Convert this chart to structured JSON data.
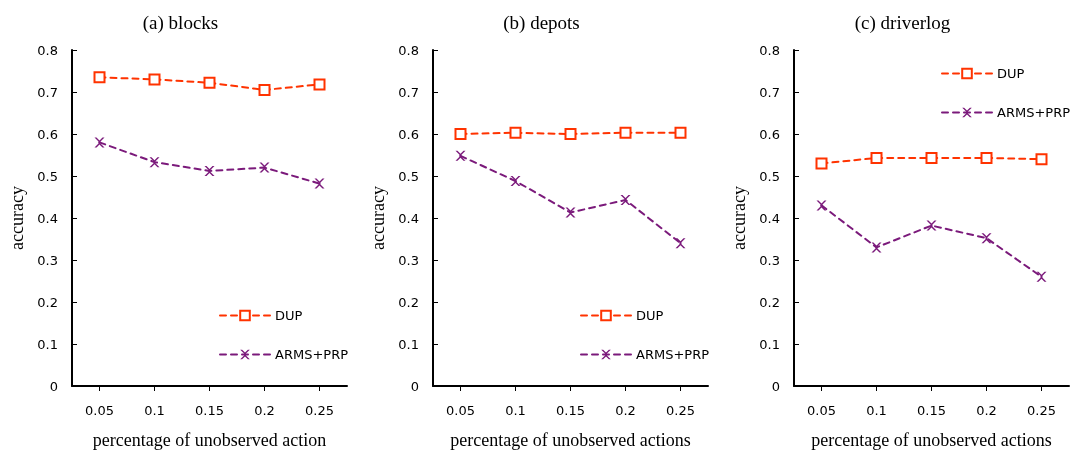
{
  "chart_data": [
    {
      "type": "line",
      "title": "(a) blocks",
      "xlabel": "percentage of unobserved action",
      "ylabel": "accuracy",
      "categories": [
        "0.05",
        "0.1",
        "0.15",
        "0.2",
        "0.25"
      ],
      "series": [
        {
          "name": "DUP",
          "color": "#ff3300",
          "values": [
            0.735,
            0.73,
            0.722,
            0.705,
            0.718
          ],
          "marker": "square",
          "line_style": "dashed"
        },
        {
          "name": "ARMS+PRP",
          "color": "#7b1a7b",
          "values": [
            0.58,
            0.533,
            0.512,
            0.52,
            0.482
          ],
          "marker": "cross",
          "line_style": "dashed"
        }
      ],
      "ylim": [
        0,
        0.8
      ],
      "yticks": [
        0,
        0.1,
        0.2,
        0.3,
        0.4,
        0.5,
        0.6,
        0.7,
        0.8
      ],
      "grid": false,
      "legend": "bottom right"
    },
    {
      "type": "line",
      "title": "(b) depots",
      "xlabel": "percentage of unobserved actions",
      "ylabel": "accuracy",
      "categories": [
        "0.05",
        "0.1",
        "0.15",
        "0.2",
        "0.25"
      ],
      "series": [
        {
          "name": "DUP",
          "color": "#ff3300",
          "values": [
            0.6,
            0.603,
            0.6,
            0.603,
            0.603
          ],
          "marker": "square",
          "line_style": "dashed"
        },
        {
          "name": "ARMS+PRP",
          "color": "#7b1a7b",
          "values": [
            0.548,
            0.488,
            0.413,
            0.443,
            0.34
          ],
          "marker": "cross",
          "line_style": "dashed"
        }
      ],
      "ylim": [
        0,
        0.8
      ],
      "yticks": [
        0,
        0.1,
        0.2,
        0.3,
        0.4,
        0.5,
        0.6,
        0.7,
        0.8
      ],
      "grid": false,
      "legend": "bottom right"
    },
    {
      "type": "line",
      "title": "(c) driverlog",
      "xlabel": "percentage of unobserved actions",
      "ylabel": "accuracy",
      "categories": [
        "0.05",
        "0.1",
        "0.15",
        "0.2",
        "0.25"
      ],
      "series": [
        {
          "name": "DUP",
          "color": "#ff3300",
          "values": [
            0.53,
            0.543,
            0.543,
            0.543,
            0.54
          ],
          "marker": "square",
          "line_style": "dashed"
        },
        {
          "name": "ARMS+PRP",
          "color": "#7b1a7b",
          "values": [
            0.43,
            0.33,
            0.382,
            0.352,
            0.26
          ],
          "marker": "cross",
          "line_style": "dashed"
        }
      ],
      "ylim": [
        0,
        0.8
      ],
      "yticks": [
        0,
        0.1,
        0.2,
        0.3,
        0.4,
        0.5,
        0.6,
        0.7,
        0.8
      ],
      "grid": false,
      "legend": "top right"
    }
  ]
}
